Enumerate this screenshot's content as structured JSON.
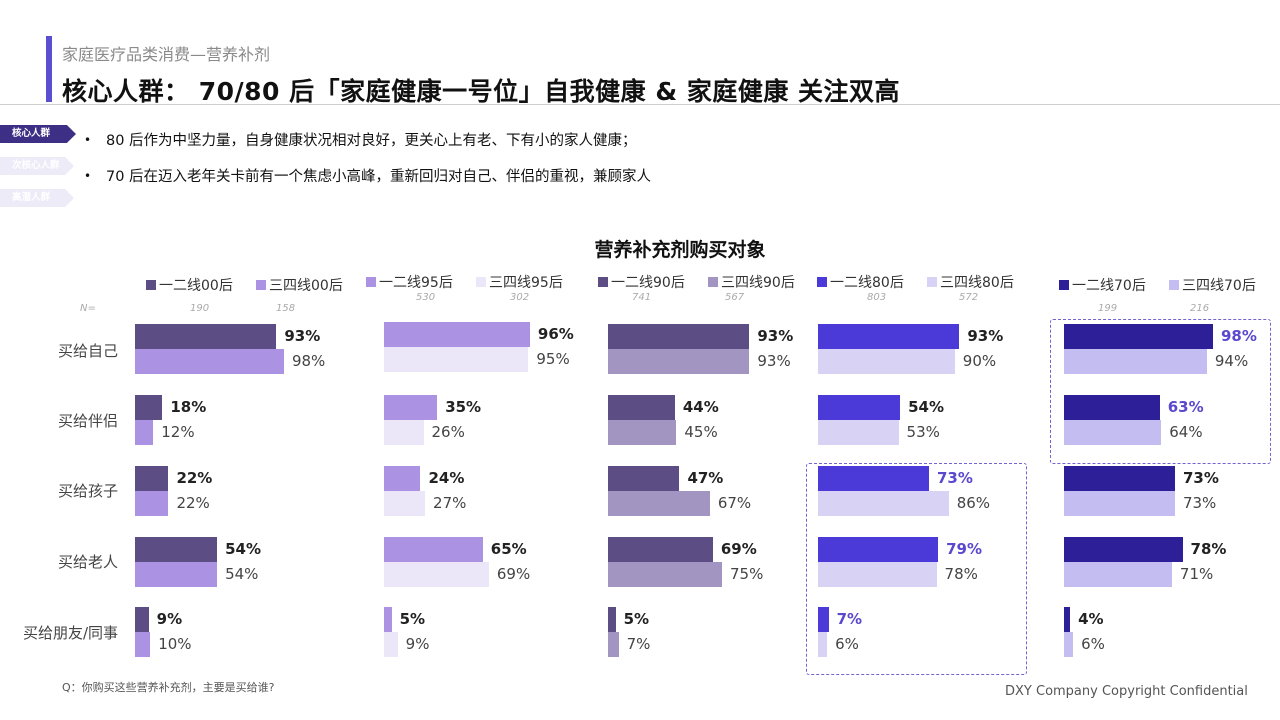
{
  "header": {
    "subtitle": "家庭医疗品类消费—营养补剂",
    "title": "核心人群： 70/80 后「家庭健康一号位」自我健康 & 家庭健康 关注双高"
  },
  "sidebar_tags": [
    "核心人群",
    "次核心人群",
    "高潜人群"
  ],
  "bullets": [
    "80 后作为中坚力量，自身健康状况相对良好，更关心上有老、下有小的家人健康；",
    "70 后在迈入老年关卡前有一个焦虑小高峰，重新回归对自己、伴侣的重视，兼顾家人"
  ],
  "n_prefix": "N=",
  "chart_data": {
    "type": "bar",
    "title": "营养补充剂购买对象",
    "categories": [
      "买给自己",
      "买给伴侣",
      "买给孩子",
      "买给老人",
      "买给朋友/同事"
    ],
    "groups": [
      {
        "series": [
          {
            "name": "一二线00后",
            "n": "190",
            "color": "#5c4e85",
            "values": [
              93,
              18,
              22,
              54,
              9
            ]
          },
          {
            "name": "三四线00后",
            "n": "158",
            "color": "#ab92e2",
            "values": [
              98,
              12,
              22,
              54,
              10
            ]
          }
        ]
      },
      {
        "series": [
          {
            "name": "一二线95后",
            "n": "530",
            "color": "#ab92e2",
            "values": [
              96,
              35,
              24,
              65,
              5
            ]
          },
          {
            "name": "三四线95后",
            "n": "302",
            "color": "#ece7f8",
            "values": [
              95,
              26,
              27,
              69,
              9
            ]
          }
        ]
      },
      {
        "series": [
          {
            "name": "一二线90后",
            "n": "741",
            "color": "#5c4e85",
            "values": [
              93,
              44,
              47,
              69,
              5
            ]
          },
          {
            "name": "三四线90后",
            "n": "567",
            "color": "#a295c1",
            "values": [
              93,
              45,
              67,
              75,
              7
            ]
          }
        ]
      },
      {
        "series": [
          {
            "name": "一二线80后",
            "n": "803",
            "color": "#4b3ad8",
            "values": [
              93,
              54,
              73,
              79,
              7
            ]
          },
          {
            "name": "三四线80后",
            "n": "572",
            "color": "#d8d3f5",
            "values": [
              90,
              53,
              86,
              78,
              6
            ]
          }
        ]
      },
      {
        "series": [
          {
            "name": "一二线70后",
            "n": "199",
            "color": "#2d1f98",
            "values": [
              98,
              63,
              73,
              78,
              4
            ]
          },
          {
            "name": "三四线70后",
            "n": "216",
            "color": "#c4bdf1",
            "values": [
              94,
              64,
              73,
              71,
              6
            ]
          }
        ]
      }
    ],
    "highlighted": [
      {
        "group": 3,
        "categories": [
          2,
          3,
          4
        ]
      },
      {
        "group": 4,
        "categories": [
          0,
          1
        ]
      }
    ],
    "highlight_label_color": "#5a48cf"
  },
  "footer": {
    "question": "Q：你购买这些营养补充剂，主要是买给谁?",
    "copyright": "DXY Company Copyright Confidential"
  }
}
